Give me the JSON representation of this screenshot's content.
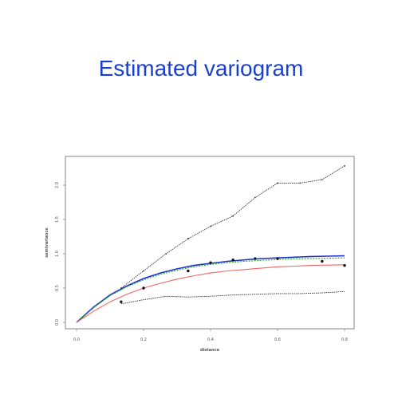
{
  "slide": {
    "title": "Estimated variogram"
  },
  "chart_data": {
    "type": "line",
    "title": "",
    "xlabel": "distance",
    "ylabel": "semivariance",
    "xlim": [
      0.0,
      0.8
    ],
    "ylim": [
      0.0,
      2.0
    ],
    "x_ticks": [
      "0.0",
      "0.2",
      "0.4",
      "0.6",
      "0.8"
    ],
    "y_ticks": [
      "0.0",
      "0.5",
      "1.0",
      "1.5",
      "2.0"
    ],
    "grid": false,
    "legend": "none",
    "points": {
      "x": [
        0.133,
        0.2,
        0.333,
        0.4,
        0.467,
        0.533,
        0.6,
        0.733,
        0.8
      ],
      "y": [
        0.3,
        0.5,
        0.75,
        0.87,
        0.91,
        0.93,
        0.93,
        0.89,
        0.83
      ]
    },
    "envelope_upper": {
      "x": [
        0.133,
        0.2,
        0.267,
        0.333,
        0.4,
        0.467,
        0.533,
        0.6,
        0.667,
        0.733,
        0.8
      ],
      "y": [
        0.5,
        0.75,
        1.0,
        1.22,
        1.4,
        1.55,
        1.82,
        2.03,
        2.03,
        2.08,
        2.28
      ]
    },
    "envelope_lower": {
      "x": [
        0.133,
        0.2,
        0.267,
        0.333,
        0.4,
        0.467,
        0.533,
        0.6,
        0.667,
        0.733,
        0.8
      ],
      "y": [
        0.27,
        0.33,
        0.38,
        0.37,
        0.38,
        0.4,
        0.41,
        0.42,
        0.42,
        0.43,
        0.45
      ]
    },
    "series": [
      {
        "color": "#2233cc",
        "style": "solid",
        "x": [
          0.0,
          0.05,
          0.1,
          0.15,
          0.2,
          0.25,
          0.3,
          0.35,
          0.4,
          0.45,
          0.5,
          0.55,
          0.6,
          0.65,
          0.7,
          0.75,
          0.8
        ],
        "y": [
          0.0,
          0.22,
          0.4,
          0.53,
          0.64,
          0.72,
          0.78,
          0.83,
          0.86,
          0.89,
          0.91,
          0.93,
          0.94,
          0.95,
          0.96,
          0.965,
          0.97
        ]
      },
      {
        "color": "#22aa22",
        "style": "dashed",
        "x": [
          0.0,
          0.05,
          0.1,
          0.15,
          0.2,
          0.25,
          0.3,
          0.35,
          0.4,
          0.45,
          0.5,
          0.55,
          0.6,
          0.65,
          0.7,
          0.75,
          0.8
        ],
        "y": [
          0.0,
          0.21,
          0.39,
          0.52,
          0.62,
          0.7,
          0.76,
          0.81,
          0.845,
          0.87,
          0.89,
          0.905,
          0.915,
          0.925,
          0.93,
          0.935,
          0.94
        ]
      },
      {
        "color": "#ee6666",
        "style": "solid",
        "x": [
          0.0,
          0.05,
          0.1,
          0.15,
          0.2,
          0.25,
          0.3,
          0.35,
          0.4,
          0.45,
          0.5,
          0.55,
          0.6,
          0.65,
          0.7,
          0.75,
          0.8
        ],
        "y": [
          0.0,
          0.16,
          0.3,
          0.41,
          0.5,
          0.57,
          0.63,
          0.68,
          0.72,
          0.75,
          0.77,
          0.79,
          0.81,
          0.82,
          0.83,
          0.835,
          0.84
        ]
      }
    ]
  }
}
